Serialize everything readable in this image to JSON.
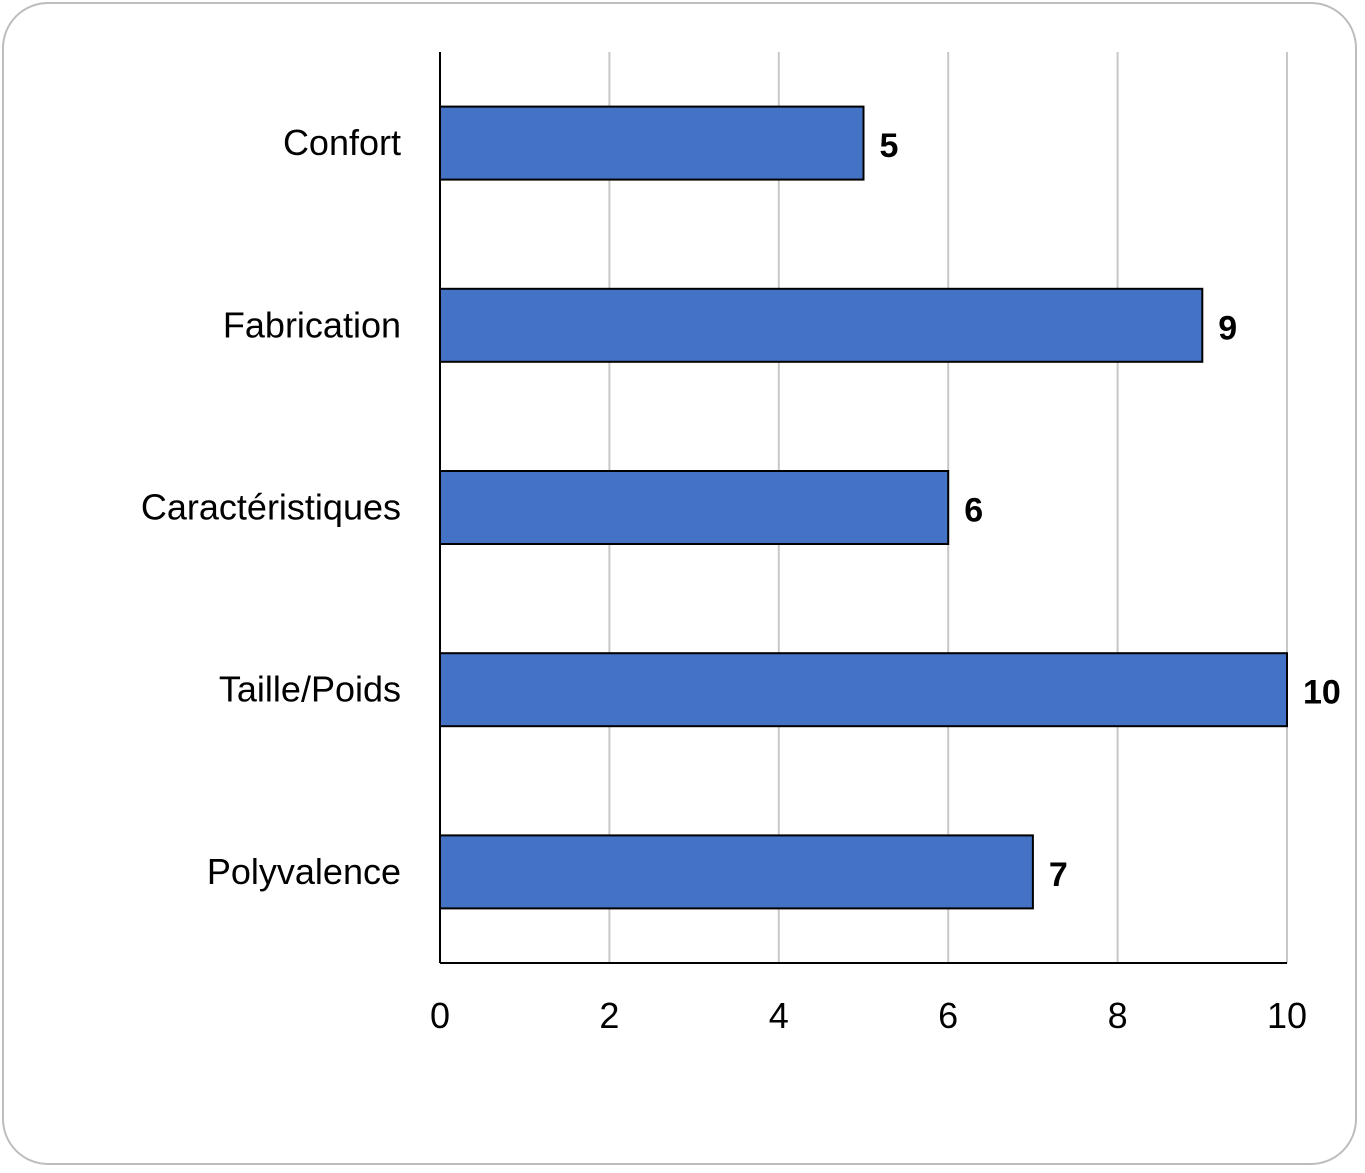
{
  "chart_data": {
    "type": "bar",
    "orientation": "horizontal",
    "categories": [
      "Confort",
      "Fabrication",
      "Caractéristiques",
      "Taille/Poids",
      "Polyvalence"
    ],
    "values": [
      5,
      9,
      6,
      10,
      7
    ],
    "data_labels": [
      "5",
      "9",
      "6",
      "10",
      "7"
    ],
    "xticks": [
      "0",
      "2",
      "4",
      "6",
      "8",
      "10"
    ],
    "xlim": [
      0,
      10
    ],
    "grid": "vertical",
    "legend": "none",
    "title": "",
    "xlabel": "",
    "ylabel": "",
    "colors": {
      "bar": "#4472C4",
      "bar_border": "#000000",
      "grid": "#c8c8c8",
      "frame": "#bdbdbd"
    }
  }
}
